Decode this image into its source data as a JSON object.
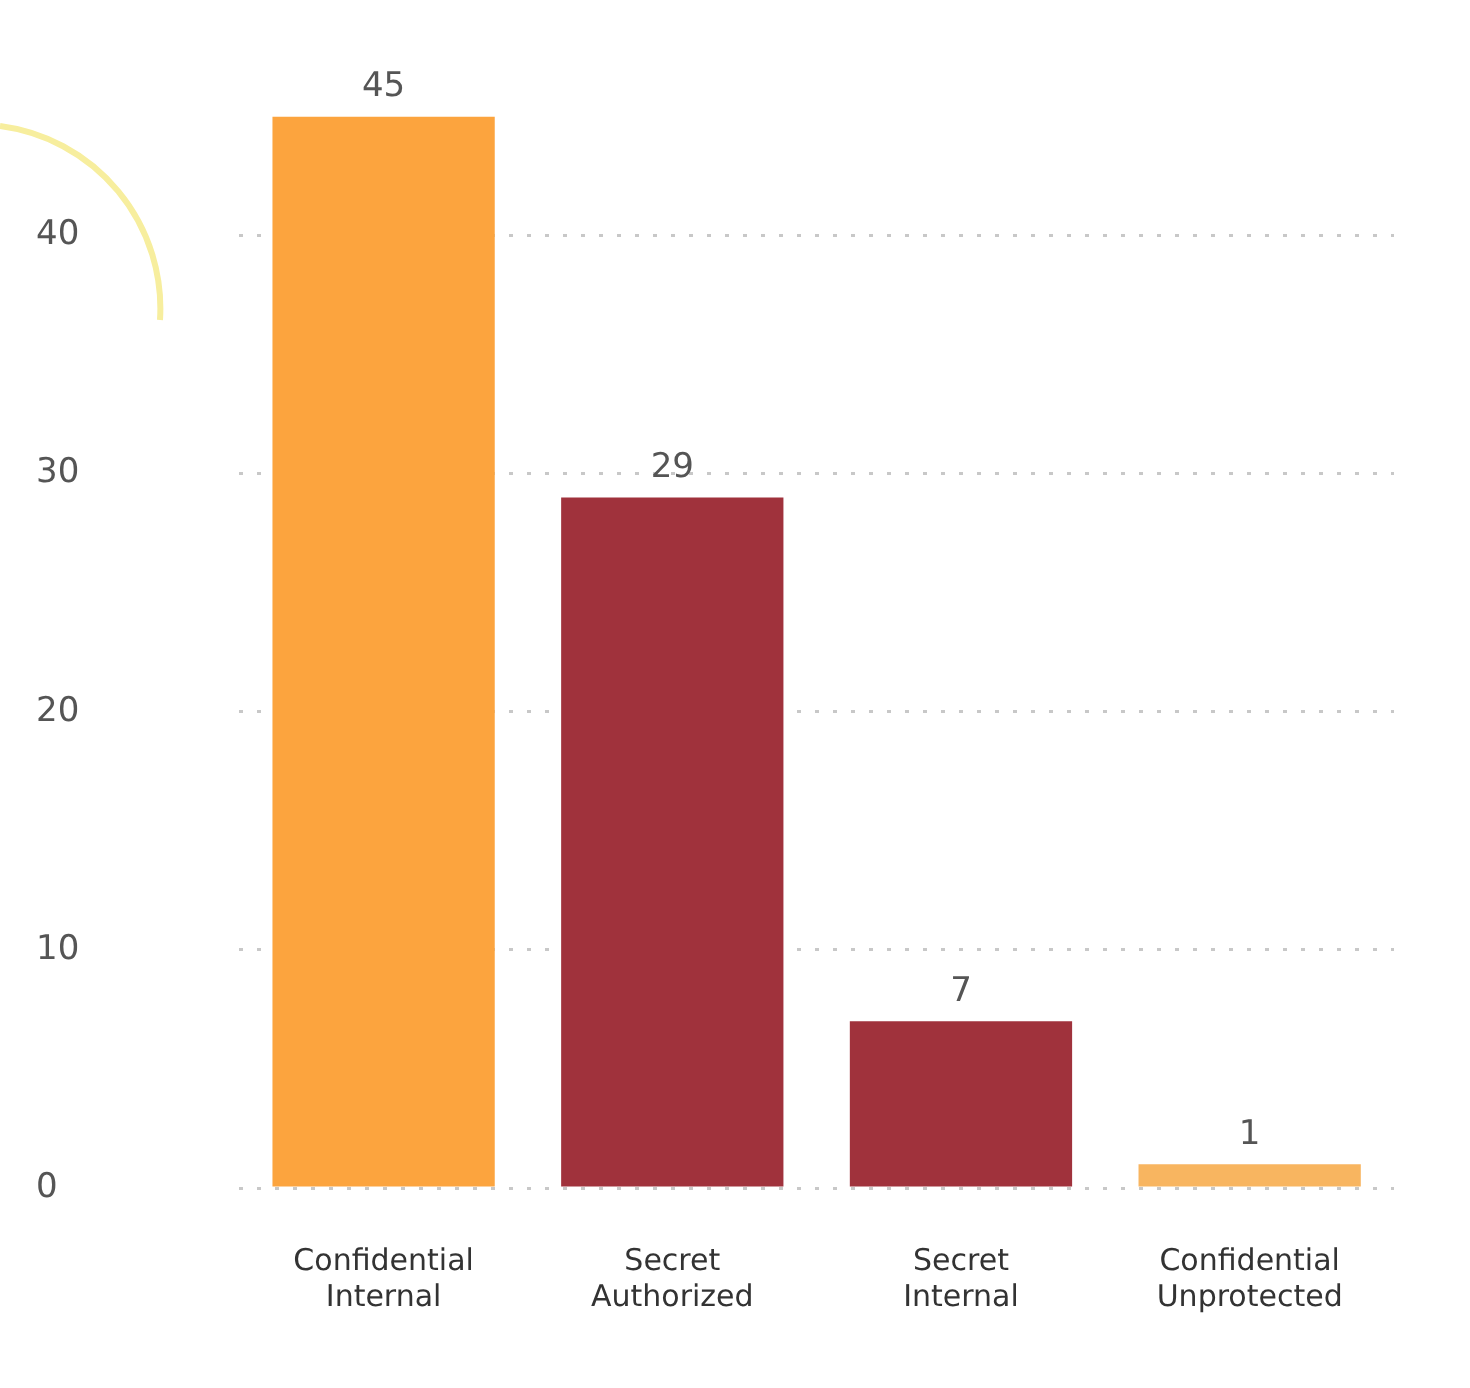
{
  "chart_data": {
    "type": "bar",
    "categories": [
      "Confidential Internal",
      "Secret Authorized",
      "Secret Internal",
      "Confidential Unprotected"
    ],
    "values": [
      45,
      29,
      7,
      1
    ],
    "colors": [
      "#fca43e",
      "#a0323c",
      "#a0323c",
      "#f8b560"
    ],
    "ylim": [
      0,
      45
    ],
    "yticks": [
      0,
      10,
      20,
      30,
      40
    ],
    "grid": "y",
    "legend": false,
    "data_labels": true
  }
}
